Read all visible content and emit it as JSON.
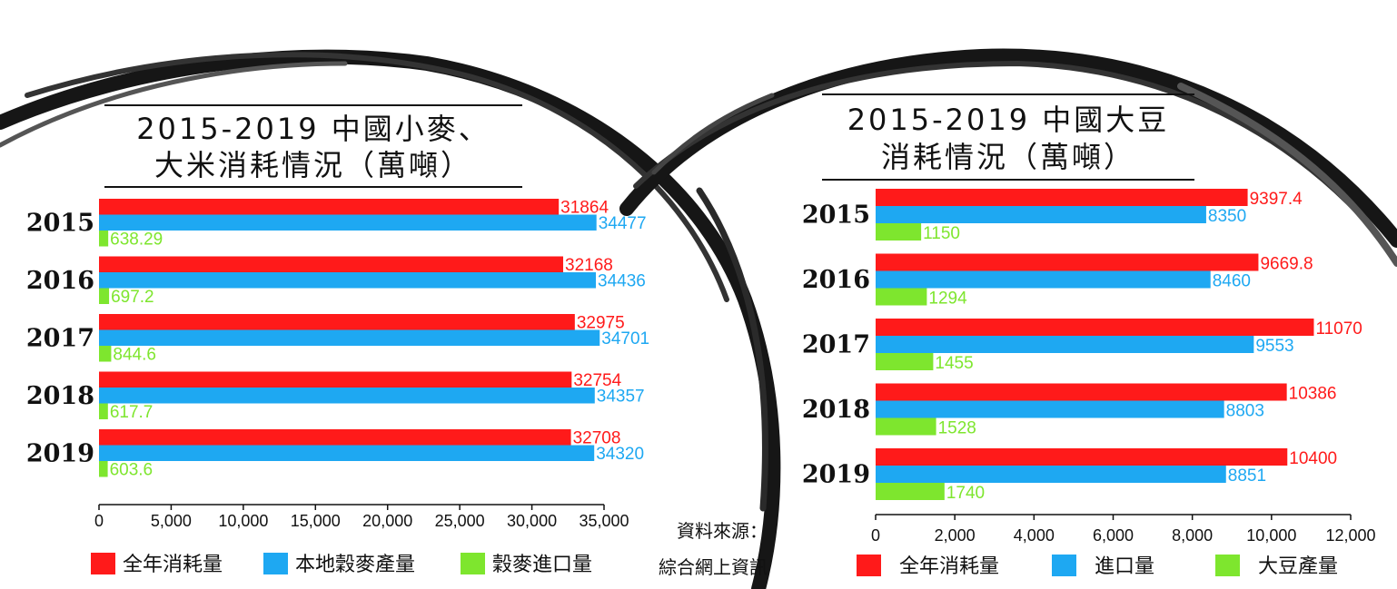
{
  "colors": {
    "red": "#ff1a1a",
    "blue": "#1ea8f2",
    "green": "#7ee62e",
    "ink": "#111111"
  },
  "source": {
    "line1": "資料來源：",
    "line2": "綜合網上資訊"
  },
  "chart_data": [
    {
      "type": "bar",
      "orientation": "horizontal",
      "title_lines": [
        "2015-2019 中國小麥、",
        "大米消耗情況（萬噸）"
      ],
      "categories": [
        "2015",
        "2016",
        "2017",
        "2018",
        "2019"
      ],
      "series": [
        {
          "name": "全年消耗量",
          "color": "#ff1a1a",
          "values": [
            31864,
            32168,
            32975,
            32754,
            32708
          ],
          "labels": [
            "31864",
            "32168",
            "32975",
            "32754",
            "32708"
          ]
        },
        {
          "name": "本地穀麥產量",
          "color": "#1ea8f2",
          "values": [
            34477,
            34436,
            34701,
            34357,
            34320
          ],
          "labels": [
            "34477",
            "34436",
            "34701",
            "34357",
            "34320"
          ]
        },
        {
          "name": "穀麥進口量",
          "color": "#7ee62e",
          "values": [
            638.29,
            697.2,
            844.6,
            617.7,
            603.6
          ],
          "labels": [
            "638.29",
            "697.2",
            "844.6",
            "617.7",
            "603.6"
          ]
        }
      ],
      "xlim": [
        0,
        35000
      ],
      "xticks": [
        0,
        5000,
        10000,
        15000,
        20000,
        25000,
        30000,
        35000
      ],
      "xtick_labels": [
        "0",
        "5,000",
        "10,000",
        "15,000",
        "20,000",
        "25,000",
        "30,000",
        "35,000"
      ],
      "legend_position": "bottom"
    },
    {
      "type": "bar",
      "orientation": "horizontal",
      "title_lines": [
        "2015-2019 中國大豆",
        "消耗情況（萬噸）"
      ],
      "categories": [
        "2015",
        "2016",
        "2017",
        "2018",
        "2019"
      ],
      "series": [
        {
          "name": "全年消耗量",
          "color": "#ff1a1a",
          "values": [
            9397.4,
            9669.8,
            11070,
            10386,
            10400
          ],
          "labels": [
            "9397.4",
            "9669.8",
            "11070",
            "10386",
            "10400"
          ]
        },
        {
          "name": "進口量",
          "color": "#1ea8f2",
          "values": [
            8350,
            8460,
            9553,
            8803,
            8851
          ],
          "labels": [
            "8350",
            "8460",
            "9553",
            "8803",
            "8851"
          ]
        },
        {
          "name": "大豆產量",
          "color": "#7ee62e",
          "values": [
            1150,
            1294,
            1455,
            1528,
            1740
          ],
          "labels": [
            "1150",
            "1294",
            "1455",
            "1528",
            "1740"
          ]
        }
      ],
      "xlim": [
        0,
        12000
      ],
      "xticks": [
        0,
        2000,
        4000,
        6000,
        8000,
        10000,
        12000
      ],
      "xtick_labels": [
        "0",
        "2,000",
        "4,000",
        "6,000",
        "8,000",
        "10,000",
        "12,000"
      ],
      "legend_position": "bottom"
    }
  ]
}
